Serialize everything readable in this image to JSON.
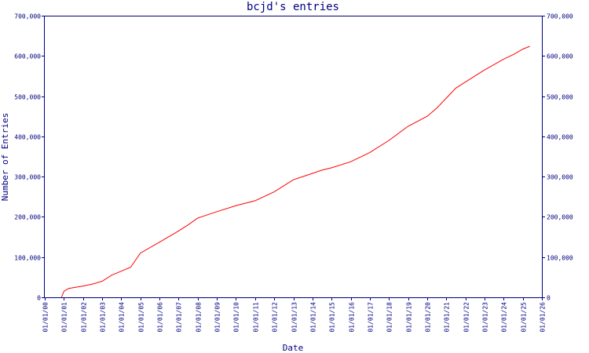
{
  "chart_data": {
    "type": "line",
    "title": "bcjd's entries",
    "xlabel": "Date",
    "ylabel": "Number of Entries",
    "x_tick_labels": [
      "01/01/00",
      "01/01/01",
      "01/01/02",
      "01/01/03",
      "01/01/04",
      "01/01/05",
      "01/01/06",
      "01/01/07",
      "01/01/08",
      "01/01/09",
      "01/01/10",
      "01/01/11",
      "01/01/12",
      "01/01/13",
      "01/01/14",
      "01/01/15",
      "01/01/16",
      "01/01/17",
      "01/01/18",
      "01/01/19",
      "01/01/20",
      "01/01/21",
      "01/01/22",
      "01/01/23",
      "01/01/24",
      "01/01/25",
      "01/01/26"
    ],
    "y_ticks": [
      0,
      100000,
      200000,
      300000,
      400000,
      500000,
      600000,
      700000
    ],
    "y_tick_labels": [
      "0",
      "100,000",
      "200,000",
      "300,000",
      "400,000",
      "500,000",
      "600,000",
      "700,000"
    ],
    "xlim": [
      "2000-01-01",
      "2026-01-01"
    ],
    "ylim": [
      0,
      700000
    ],
    "grid": false,
    "series": [
      {
        "color": "#ff0000",
        "x": [
          "2000-11-15",
          "2001-01-01",
          "2001-04-01",
          "2002-01-01",
          "2002-07-01",
          "2003-01-01",
          "2003-07-01",
          "2004-01-01",
          "2004-07-01",
          "2005-01-01",
          "2006-01-01",
          "2007-01-01",
          "2007-07-01",
          "2008-01-01",
          "2009-01-01",
          "2010-01-01",
          "2011-01-01",
          "2012-01-01",
          "2013-01-01",
          "2013-07-01",
          "2014-01-01",
          "2014-07-01",
          "2015-01-01",
          "2016-01-01",
          "2017-01-01",
          "2018-01-01",
          "2019-01-01",
          "2020-01-01",
          "2020-07-01",
          "2021-01-01",
          "2021-07-01",
          "2022-01-01",
          "2023-01-01",
          "2024-01-01",
          "2024-07-01",
          "2025-01-01",
          "2025-05-15"
        ],
        "values": [
          0,
          15000,
          22000,
          28000,
          33000,
          40000,
          55000,
          65000,
          75000,
          110000,
          137000,
          165000,
          180000,
          197000,
          213000,
          228000,
          240000,
          262000,
          292000,
          300000,
          308000,
          316000,
          322000,
          337000,
          360000,
          390000,
          425000,
          450000,
          470000,
          495000,
          520000,
          535000,
          565000,
          592000,
          603000,
          617000,
          624000
        ]
      }
    ]
  }
}
